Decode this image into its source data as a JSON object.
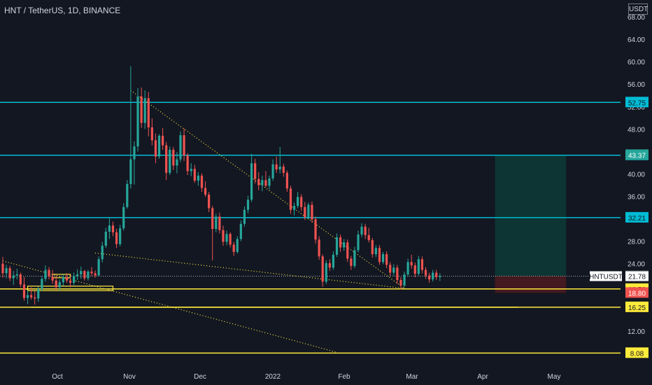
{
  "header": {
    "title": "HNT / TetherUS, 1D, BINANCE",
    "currency": "USDT"
  },
  "colors": {
    "background": "#131722",
    "up": "#26a69a",
    "down": "#ef5350",
    "cyan": "#00bcd4",
    "yellow": "#ffeb3b",
    "text": "#d1d4dc",
    "target_zone": "#0d3b36",
    "stop_zone": "#4a1a1f"
  },
  "chart_data": {
    "type": "candlestick",
    "x_axis": {
      "tick_labels": [
        "Oct",
        "Nov",
        "Dec",
        "2022",
        "Feb",
        "Mar",
        "Apr",
        "May"
      ]
    },
    "y_axis": {
      "tick_labels": [
        "68.00",
        "64.00",
        "60.00",
        "56.00",
        "52.00",
        "48.00",
        "44.00",
        "40.00",
        "36.00",
        "32.00",
        "28.00",
        "24.00",
        "20.00",
        "16.00",
        "12.00",
        "8.00"
      ],
      "ylim": [
        5.5,
        71
      ]
    },
    "horizontal_levels": [
      {
        "value": 52.75,
        "label": "52.75",
        "color": "#00bcd4"
      },
      {
        "value": 43.33,
        "label": "43.33",
        "color": "#00bcd4"
      },
      {
        "value": 32.21,
        "label": "32.21",
        "color": "#00bcd4"
      },
      {
        "value": 19.5,
        "label": "19.50",
        "color": "#ffeb3b"
      },
      {
        "value": 16.25,
        "label": "16.25",
        "color": "#ffeb3b"
      },
      {
        "value": 8.08,
        "label": "8.08",
        "color": "#ffeb3b"
      }
    ],
    "price_tags": [
      {
        "value": 43.37,
        "label": "43.37",
        "bg": "#26a69a",
        "fg": "#ffffff"
      },
      {
        "value": 21.8,
        "label": "21.80",
        "bg": "#434651",
        "fg": "#ffffff"
      },
      {
        "value": 18.8,
        "label": "18.80",
        "bg": "#ef5350",
        "fg": "#ffffff"
      }
    ],
    "current_price": {
      "symbol": "HNTUSDT",
      "value": 21.78,
      "label": "21.78"
    },
    "position": {
      "entry": 21.8,
      "target": 43.37,
      "stop": 18.8
    },
    "candles": [
      [
        24.0,
        25.2,
        21.5,
        22.3
      ],
      [
        22.3,
        23.8,
        21.4,
        23.2
      ],
      [
        23.2,
        23.6,
        20.9,
        21.4
      ],
      [
        21.4,
        22.7,
        20.2,
        21.9
      ],
      [
        21.9,
        23.1,
        21.2,
        22.1
      ],
      [
        22.1,
        22.4,
        19.8,
        20.3
      ],
      [
        20.3,
        21.6,
        17.4,
        17.9
      ],
      [
        17.9,
        19.2,
        16.8,
        18.4
      ],
      [
        18.4,
        19.8,
        17.6,
        18.0
      ],
      [
        18.0,
        19.1,
        16.7,
        17.8
      ],
      [
        17.8,
        19.9,
        17.2,
        19.5
      ],
      [
        19.5,
        21.8,
        19.1,
        21.3
      ],
      [
        21.3,
        23.7,
        20.8,
        22.9
      ],
      [
        22.9,
        23.4,
        21.2,
        21.7
      ],
      [
        21.7,
        22.9,
        20.4,
        21.0
      ],
      [
        21.0,
        21.9,
        19.3,
        19.8
      ],
      [
        19.8,
        21.2,
        19.2,
        20.7
      ],
      [
        20.7,
        22.1,
        20.1,
        21.6
      ],
      [
        21.6,
        22.3,
        20.6,
        21.0
      ],
      [
        21.0,
        21.7,
        19.8,
        20.6
      ],
      [
        20.6,
        22.4,
        20.2,
        21.8
      ],
      [
        21.8,
        23.0,
        21.1,
        22.1
      ],
      [
        22.1,
        23.5,
        21.3,
        22.7
      ],
      [
        22.7,
        22.9,
        21.0,
        21.4
      ],
      [
        21.4,
        22.9,
        21.0,
        22.6
      ],
      [
        22.6,
        23.4,
        21.8,
        22.3
      ],
      [
        22.3,
        22.8,
        21.5,
        21.9
      ],
      [
        21.9,
        25.3,
        21.7,
        24.8
      ],
      [
        24.8,
        27.9,
        24.2,
        27.2
      ],
      [
        27.2,
        30.4,
        26.8,
        29.7
      ],
      [
        29.7,
        32.1,
        28.4,
        30.8
      ],
      [
        30.8,
        31.5,
        28.9,
        29.6
      ],
      [
        29.6,
        30.2,
        26.8,
        27.5
      ],
      [
        27.5,
        30.9,
        27.1,
        30.3
      ],
      [
        30.3,
        34.8,
        29.9,
        34.1
      ],
      [
        34.1,
        38.9,
        33.8,
        38.2
      ],
      [
        38.2,
        59.2,
        37.4,
        42.6
      ],
      [
        42.6,
        45.8,
        38.1,
        44.9
      ],
      [
        44.9,
        55.3,
        44.0,
        53.8
      ],
      [
        53.8,
        55.4,
        48.2,
        49.1
      ],
      [
        49.1,
        54.9,
        48.0,
        53.5
      ],
      [
        53.5,
        54.6,
        46.7,
        48.3
      ],
      [
        48.3,
        49.9,
        45.1,
        46.0
      ],
      [
        46.0,
        47.2,
        41.9,
        43.1
      ],
      [
        43.1,
        47.1,
        42.7,
        46.8
      ],
      [
        46.8,
        48.2,
        44.3,
        45.1
      ],
      [
        45.1,
        45.7,
        38.9,
        40.2
      ],
      [
        40.2,
        44.9,
        39.8,
        44.3
      ],
      [
        44.3,
        44.8,
        40.7,
        41.5
      ],
      [
        41.5,
        43.9,
        40.1,
        42.6
      ],
      [
        42.6,
        47.6,
        42.1,
        46.9
      ],
      [
        46.9,
        48.1,
        42.3,
        43.3
      ],
      [
        43.3,
        43.7,
        39.8,
        40.5
      ],
      [
        40.5,
        41.9,
        39.6,
        40.9
      ],
      [
        40.9,
        41.6,
        38.4,
        38.8
      ],
      [
        38.8,
        40.3,
        37.9,
        39.7
      ],
      [
        39.7,
        40.1,
        36.8,
        37.5
      ],
      [
        37.5,
        38.7,
        35.9,
        36.3
      ],
      [
        36.3,
        36.8,
        33.2,
        33.9
      ],
      [
        33.9,
        34.3,
        24.6,
        30.2
      ],
      [
        30.2,
        32.9,
        29.6,
        32.4
      ],
      [
        32.4,
        33.1,
        29.4,
        30.0
      ],
      [
        30.0,
        30.8,
        27.2,
        27.9
      ],
      [
        27.9,
        29.9,
        27.3,
        29.3
      ],
      [
        29.3,
        29.6,
        26.9,
        27.4
      ],
      [
        27.4,
        27.9,
        25.4,
        26.1
      ],
      [
        26.1,
        28.9,
        25.8,
        28.4
      ],
      [
        28.4,
        31.7,
        28.0,
        31.1
      ],
      [
        31.1,
        34.2,
        30.6,
        33.6
      ],
      [
        33.6,
        36.1,
        33.0,
        35.4
      ],
      [
        35.4,
        43.6,
        35.0,
        41.9
      ],
      [
        41.9,
        42.7,
        38.3,
        39.1
      ],
      [
        39.1,
        40.3,
        37.1,
        38.0
      ],
      [
        38.0,
        39.7,
        36.9,
        38.9
      ],
      [
        38.9,
        40.5,
        37.6,
        37.9
      ],
      [
        37.9,
        39.7,
        37.2,
        39.2
      ],
      [
        39.2,
        42.6,
        38.8,
        41.7
      ],
      [
        41.7,
        43.1,
        40.2,
        40.8
      ],
      [
        40.8,
        44.8,
        40.1,
        41.3
      ],
      [
        41.3,
        41.8,
        39.5,
        40.2
      ],
      [
        40.2,
        40.6,
        36.8,
        37.4
      ],
      [
        37.4,
        37.9,
        32.9,
        33.6
      ],
      [
        33.6,
        34.9,
        32.6,
        34.3
      ],
      [
        34.3,
        36.8,
        33.9,
        35.9
      ],
      [
        35.9,
        36.4,
        33.4,
        34.1
      ],
      [
        34.1,
        35.0,
        31.8,
        32.3
      ],
      [
        32.3,
        34.9,
        31.9,
        34.5
      ],
      [
        34.5,
        35.1,
        31.3,
        31.9
      ],
      [
        31.9,
        32.4,
        27.6,
        28.3
      ],
      [
        28.3,
        28.9,
        24.7,
        25.3
      ],
      [
        25.3,
        25.7,
        19.9,
        20.8
      ],
      [
        20.8,
        24.6,
        20.4,
        24.1
      ],
      [
        24.1,
        24.8,
        22.7,
        23.3
      ],
      [
        23.3,
        26.2,
        22.9,
        25.6
      ],
      [
        25.6,
        29.4,
        25.2,
        28.7
      ],
      [
        28.7,
        29.2,
        26.1,
        26.9
      ],
      [
        26.9,
        28.4,
        26.3,
        27.8
      ],
      [
        27.8,
        28.3,
        24.3,
        24.9
      ],
      [
        24.9,
        25.4,
        22.9,
        23.6
      ],
      [
        23.6,
        27.0,
        23.2,
        26.4
      ],
      [
        26.4,
        29.9,
        26.0,
        29.2
      ],
      [
        29.2,
        31.2,
        28.7,
        30.6
      ],
      [
        30.6,
        31.1,
        28.4,
        29.1
      ],
      [
        29.1,
        30.4,
        27.8,
        28.2
      ],
      [
        28.2,
        28.6,
        25.1,
        25.7
      ],
      [
        25.7,
        27.3,
        25.2,
        26.8
      ],
      [
        26.8,
        27.3,
        23.8,
        24.3
      ],
      [
        24.3,
        26.1,
        23.9,
        25.7
      ],
      [
        25.7,
        26.2,
        23.2,
        23.8
      ],
      [
        23.8,
        24.3,
        21.8,
        22.4
      ],
      [
        22.4,
        23.9,
        21.9,
        23.3
      ],
      [
        23.3,
        23.8,
        20.4,
        21.1
      ],
      [
        21.1,
        21.6,
        19.4,
        20.1
      ],
      [
        20.1,
        22.6,
        19.8,
        22.1
      ],
      [
        22.1,
        24.9,
        21.7,
        24.3
      ],
      [
        24.3,
        25.6,
        23.1,
        23.7
      ],
      [
        23.7,
        24.2,
        21.6,
        22.2
      ],
      [
        22.2,
        25.4,
        21.9,
        24.8
      ],
      [
        24.8,
        25.3,
        22.3,
        22.9
      ],
      [
        22.9,
        23.4,
        21.3,
        21.9
      ],
      [
        21.9,
        22.4,
        20.6,
        21.2
      ],
      [
        21.2,
        22.9,
        20.8,
        22.4
      ],
      [
        22.4,
        22.9,
        21.1,
        21.6
      ],
      [
        21.6,
        22.3,
        20.9,
        21.78
      ]
    ],
    "trend_lines": [
      {
        "style": "dotted",
        "color": "#ffeb3b",
        "from": [
          36,
          54.9
        ],
        "to": [
          113,
          19.6
        ]
      },
      {
        "style": "dotted",
        "color": "#ffeb3b",
        "from": [
          26,
          25.9
        ],
        "to": [
          113,
          19.6
        ]
      },
      {
        "style": "dotted",
        "color": "#ffeb3b",
        "from": [
          0,
          24.5
        ],
        "to": [
          94,
          8.2
        ]
      }
    ],
    "boxes": [
      {
        "color": "#ffeb3b",
        "x0": 7,
        "x1": 31,
        "y0": 19.2,
        "y1": 20.0
      },
      {
        "color": "#ffeb3b",
        "x0": 14,
        "x1": 19,
        "y0": 21.5,
        "y1": 22.1
      }
    ],
    "support_lines": [
      {
        "color": "#ffeb3b",
        "x0": 75,
        "x1": 145,
        "value": 19.5
      },
      {
        "color": "#ffeb3b",
        "x0": 8,
        "x1": 145,
        "value": 16.25
      }
    ]
  }
}
